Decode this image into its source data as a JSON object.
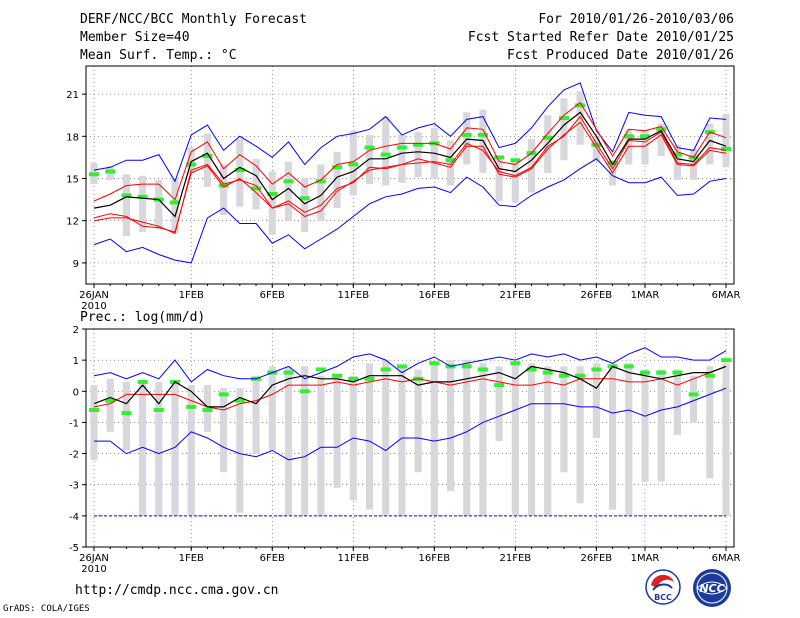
{
  "header": {
    "title": "DERF/NCC/BCC Monthly Forecast",
    "member_size": "Member Size=40",
    "temp_label": "Mean Surf. Temp.: °C",
    "period": "For 2010/01/26-2010/03/06",
    "refer_date": "Fcst Started Refer Date 2010/01/25",
    "produced_date": "Fcst Produced Date 2010/01/26"
  },
  "prec_label": "Prec.: log(mm/d)",
  "footer": {
    "url": "http://cmdp.ncc.cma.gov.cn",
    "credit": "GrADS: COLA/IGES"
  },
  "logos": {
    "bcc_text": "BCC",
    "ncc_text": "NCC"
  },
  "colors": {
    "blue": "#0000ff",
    "red": "#ff0000",
    "green": "#33ee33",
    "gray_bar": "#d8d8dc",
    "mean": "#000000"
  },
  "chart_data": [
    {
      "type": "line",
      "title": "Mean Surf. Temp.: °C",
      "x_tick_labels": [
        "26JAN",
        "1FEB",
        "6FEB",
        "11FEB",
        "16FEB",
        "21FEB",
        "26FEB",
        "1MAR",
        "6MAR"
      ],
      "x_tick_days": [
        0,
        6,
        11,
        16,
        21,
        26,
        31,
        34,
        39
      ],
      "x_year_label": "2010",
      "ylim": [
        7.5,
        23
      ],
      "yticks": [
        9,
        12,
        15,
        18,
        21
      ],
      "series": [
        {
          "name": "max",
          "values": [
            10.3,
            10.7,
            9.8,
            10.1,
            9.6,
            9.2,
            9.0,
            12.2,
            12.9,
            11.8,
            11.8,
            10.4,
            11.0,
            10.0,
            10.7,
            11.4,
            12.3,
            13.2,
            13.7,
            13.9,
            14.3,
            14.4,
            14.0,
            15.1,
            14.4,
            13.1,
            13.0,
            13.8,
            14.4,
            14.9,
            15.7,
            16.4,
            15.2,
            14.7,
            14.7,
            15.1,
            13.8,
            13.9,
            14.8,
            15.0
          ]
        },
        {
          "name": "min",
          "values": [
            15.6,
            15.8,
            16.3,
            16.3,
            16.7,
            14.8,
            18.1,
            18.8,
            17.0,
            18.0,
            17.3,
            16.5,
            17.6,
            16.0,
            17.2,
            18.0,
            18.2,
            18.5,
            19.4,
            18.1,
            18.6,
            18.9,
            18.0,
            19.2,
            19.4,
            17.2,
            17.5,
            18.6,
            20.1,
            21.3,
            21.8,
            18.4,
            16.9,
            19.7,
            19.5,
            19.4,
            17.2,
            17.0,
            19.3,
            19.2
          ]
        },
        {
          "name": "mean",
          "values": [
            12.0,
            12.2,
            12.2,
            11.9,
            11.6,
            11.1,
            15.6,
            16.0,
            14.6,
            14.9,
            14.5,
            12.9,
            13.4,
            12.6,
            13.1,
            14.3,
            14.7,
            15.8,
            15.7,
            16.0,
            16.1,
            16.2,
            16.0,
            17.5,
            17.0,
            15.5,
            15.2,
            15.8,
            17.3,
            18.0,
            19.4,
            17.5,
            15.7,
            17.7,
            17.6,
            18.3,
            16.1,
            16.0,
            17.2,
            17.0
          ]
        },
        {
          "name": "red_low",
          "values": [
            12.2,
            12.5,
            12.3,
            11.6,
            11.5,
            11.2,
            15.4,
            15.9,
            14.4,
            15.0,
            14.0,
            12.9,
            13.2,
            12.3,
            12.7,
            14.1,
            14.8,
            15.6,
            15.8,
            16.0,
            16.4,
            16.1,
            15.8,
            17.3,
            17.3,
            15.3,
            15.1,
            15.7,
            17.1,
            18.1,
            19.0,
            17.2,
            15.4,
            17.3,
            17.3,
            18.1,
            16.0,
            15.9,
            17.0,
            16.8
          ]
        },
        {
          "name": "red_high",
          "values": [
            13.4,
            13.9,
            14.5,
            14.6,
            14.6,
            13.5,
            16.9,
            17.6,
            15.7,
            16.7,
            15.9,
            14.6,
            15.4,
            14.4,
            14.9,
            16.0,
            16.2,
            17.0,
            17.3,
            17.5,
            17.5,
            17.5,
            17.1,
            18.6,
            18.5,
            16.2,
            16.0,
            16.8,
            18.2,
            19.5,
            20.4,
            18.5,
            16.6,
            18.5,
            18.4,
            18.7,
            16.9,
            16.5,
            18.3,
            17.9
          ]
        },
        {
          "name": "black_mean",
          "values": [
            12.9,
            13.1,
            13.7,
            13.6,
            13.5,
            12.3,
            16.2,
            16.8,
            15.0,
            15.8,
            15.2,
            13.5,
            14.3,
            13.2,
            13.8,
            15.1,
            15.5,
            16.4,
            16.4,
            16.8,
            16.9,
            16.8,
            16.5,
            17.8,
            17.7,
            15.7,
            15.5,
            16.3,
            17.5,
            18.8,
            19.7,
            18.0,
            16.0,
            17.8,
            17.8,
            18.4,
            16.4,
            16.2,
            17.7,
            17.3
          ]
        },
        {
          "name": "obs_green",
          "values": [
            15.3,
            15.5,
            13.8,
            13.7,
            13.5,
            13.3,
            16.0,
            16.6,
            14.5,
            15.6,
            14.3,
            13.9,
            14.8,
            13.6,
            14.8,
            15.8,
            16.0,
            17.2,
            16.7,
            17.2,
            17.4,
            17.5,
            16.3,
            18.1,
            18.1,
            16.5,
            16.3,
            16.8,
            17.9,
            19.3,
            20.2,
            17.4,
            16.1,
            18.0,
            18.0,
            18.5,
            16.7,
            16.5,
            18.3,
            17.1
          ]
        },
        {
          "name": "bar_low",
          "values": [
            14.6,
            14.9,
            10.9,
            11.2,
            11.4,
            11.1,
            15.4,
            14.4,
            12.4,
            13.0,
            12.8,
            11.0,
            12.0,
            11.2,
            12.0,
            12.9,
            13.8,
            14.6,
            14.5,
            14.7,
            15.1,
            15.0,
            14.5,
            16.0,
            15.4,
            13.4,
            13.3,
            14.0,
            15.4,
            16.3,
            17.4,
            16.2,
            14.5,
            16.0,
            16.0,
            16.6,
            14.9,
            14.9,
            16.0,
            15.8
          ]
        },
        {
          "name": "bar_high",
          "values": [
            16.1,
            15.9,
            15.3,
            15.2,
            14.9,
            15.0,
            17.2,
            18.2,
            16.0,
            17.8,
            16.4,
            15.5,
            16.2,
            15.0,
            16.0,
            16.9,
            18.4,
            18.1,
            19.4,
            18.1,
            18.3,
            18.6,
            17.7,
            19.7,
            19.9,
            16.6,
            16.4,
            17.8,
            19.5,
            20.7,
            21.2,
            18.0,
            16.3,
            18.5,
            18.5,
            18.9,
            17.4,
            17.1,
            18.9,
            19.6
          ]
        }
      ]
    },
    {
      "type": "line",
      "title": "Prec.: log(mm/d)",
      "x_tick_labels": [
        "26JAN",
        "1FEB",
        "6FEB",
        "11FEB",
        "16FEB",
        "21FEB",
        "26FEB",
        "1MAR",
        "6MAR"
      ],
      "x_tick_days": [
        0,
        6,
        11,
        16,
        21,
        26,
        31,
        34,
        39
      ],
      "x_year_label": "2010",
      "ylim": [
        -5,
        2
      ],
      "yticks": [
        -5,
        -4,
        -3,
        -2,
        -1,
        0,
        1,
        2
      ],
      "series": [
        {
          "name": "max",
          "values": [
            0.5,
            0.6,
            0.4,
            0.6,
            0.4,
            1.0,
            0.3,
            0.7,
            0.5,
            0.4,
            0.4,
            0.6,
            0.8,
            0.4,
            0.6,
            0.8,
            1.1,
            1.2,
            1.0,
            0.6,
            0.9,
            1.1,
            0.8,
            0.9,
            1.0,
            1.1,
            1.0,
            1.2,
            1.1,
            1.2,
            1.0,
            1.1,
            0.9,
            1.2,
            1.4,
            1.1,
            1.1,
            1.0,
            1.0,
            1.3
          ]
        },
        {
          "name": "min",
          "values": [
            -1.6,
            -1.6,
            -2.0,
            -1.8,
            -2.0,
            -1.8,
            -1.3,
            -1.5,
            -1.8,
            -2.0,
            -2.1,
            -1.9,
            -2.2,
            -2.1,
            -1.8,
            -1.8,
            -1.5,
            -1.6,
            -1.9,
            -1.5,
            -1.5,
            -1.6,
            -1.5,
            -1.3,
            -1.0,
            -0.8,
            -0.6,
            -0.4,
            -0.4,
            -0.4,
            -0.5,
            -0.5,
            -0.7,
            -0.6,
            -0.8,
            -0.6,
            -0.5,
            -0.3,
            -0.1,
            0.1
          ]
        },
        {
          "name": "mean",
          "values": [
            -0.5,
            -0.4,
            -0.1,
            -0.1,
            -0.1,
            -0.1,
            -0.3,
            -0.5,
            -0.6,
            -0.4,
            -0.3,
            -0.1,
            0.2,
            0.2,
            0.2,
            0.3,
            0.2,
            0.3,
            0.4,
            0.3,
            0.4,
            0.3,
            0.2,
            0.3,
            0.4,
            0.3,
            0.2,
            0.2,
            0.3,
            0.2,
            0.4,
            0.4,
            0.4,
            0.3,
            0.3,
            0.4,
            0.2,
            0.4,
            0.6,
            0.8
          ]
        },
        {
          "name": "black_mean",
          "values": [
            -0.4,
            -0.2,
            -0.4,
            0.2,
            -0.4,
            0.3,
            0.0,
            -0.5,
            -0.5,
            -0.2,
            -0.4,
            0.2,
            0.4,
            0.5,
            0.4,
            0.4,
            0.3,
            0.5,
            0.5,
            0.5,
            0.2,
            0.3,
            0.3,
            0.4,
            0.5,
            0.6,
            0.4,
            0.8,
            0.7,
            0.6,
            0.4,
            0.1,
            0.8,
            0.6,
            0.5,
            0.4,
            0.5,
            0.6,
            0.6,
            0.8
          ]
        },
        {
          "name": "obs_green",
          "values": [
            -0.6,
            -0.3,
            -0.7,
            0.3,
            -0.6,
            0.3,
            -0.5,
            -0.6,
            -0.1,
            -0.3,
            0.4,
            0.6,
            0.6,
            0.0,
            0.7,
            0.5,
            0.4,
            0.4,
            0.7,
            0.8,
            0.4,
            0.9,
            0.8,
            0.8,
            0.7,
            0.2,
            0.9,
            0.7,
            0.6,
            0.5,
            0.5,
            0.7,
            0.8,
            0.8,
            0.6,
            0.6,
            0.6,
            -0.1,
            0.5,
            1.0
          ]
        },
        {
          "name": "bar_low",
          "values": [
            -2.2,
            -1.3,
            -1.9,
            -4.0,
            -4.0,
            -4.0,
            -4.0,
            -1.3,
            -2.6,
            -3.9,
            -2.0,
            -1.9,
            -4.0,
            -4.0,
            -4.0,
            -3.1,
            -3.5,
            -3.8,
            -4.0,
            -4.0,
            -2.6,
            -4.0,
            -3.2,
            -4.0,
            -4.0,
            -1.6,
            -4.0,
            -4.0,
            -4.0,
            -2.6,
            -3.6,
            -1.5,
            -3.8,
            -4.0,
            -2.9,
            -2.9,
            -1.4,
            -1.0,
            -2.8,
            -4.0
          ]
        },
        {
          "name": "bar_high",
          "values": [
            0.2,
            0.4,
            0.3,
            0.3,
            0.3,
            0.3,
            0.2,
            0.2,
            0.1,
            0.1,
            0.5,
            0.8,
            0.8,
            0.8,
            0.5,
            0.5,
            0.5,
            0.9,
            1.0,
            0.8,
            0.7,
            0.9,
            1.0,
            1.0,
            0.9,
            0.8,
            0.9,
            0.9,
            0.8,
            0.8,
            0.8,
            0.9,
            0.9,
            0.9,
            0.7,
            0.7,
            0.7,
            0.5,
            0.8,
            0.9
          ]
        }
      ]
    }
  ]
}
